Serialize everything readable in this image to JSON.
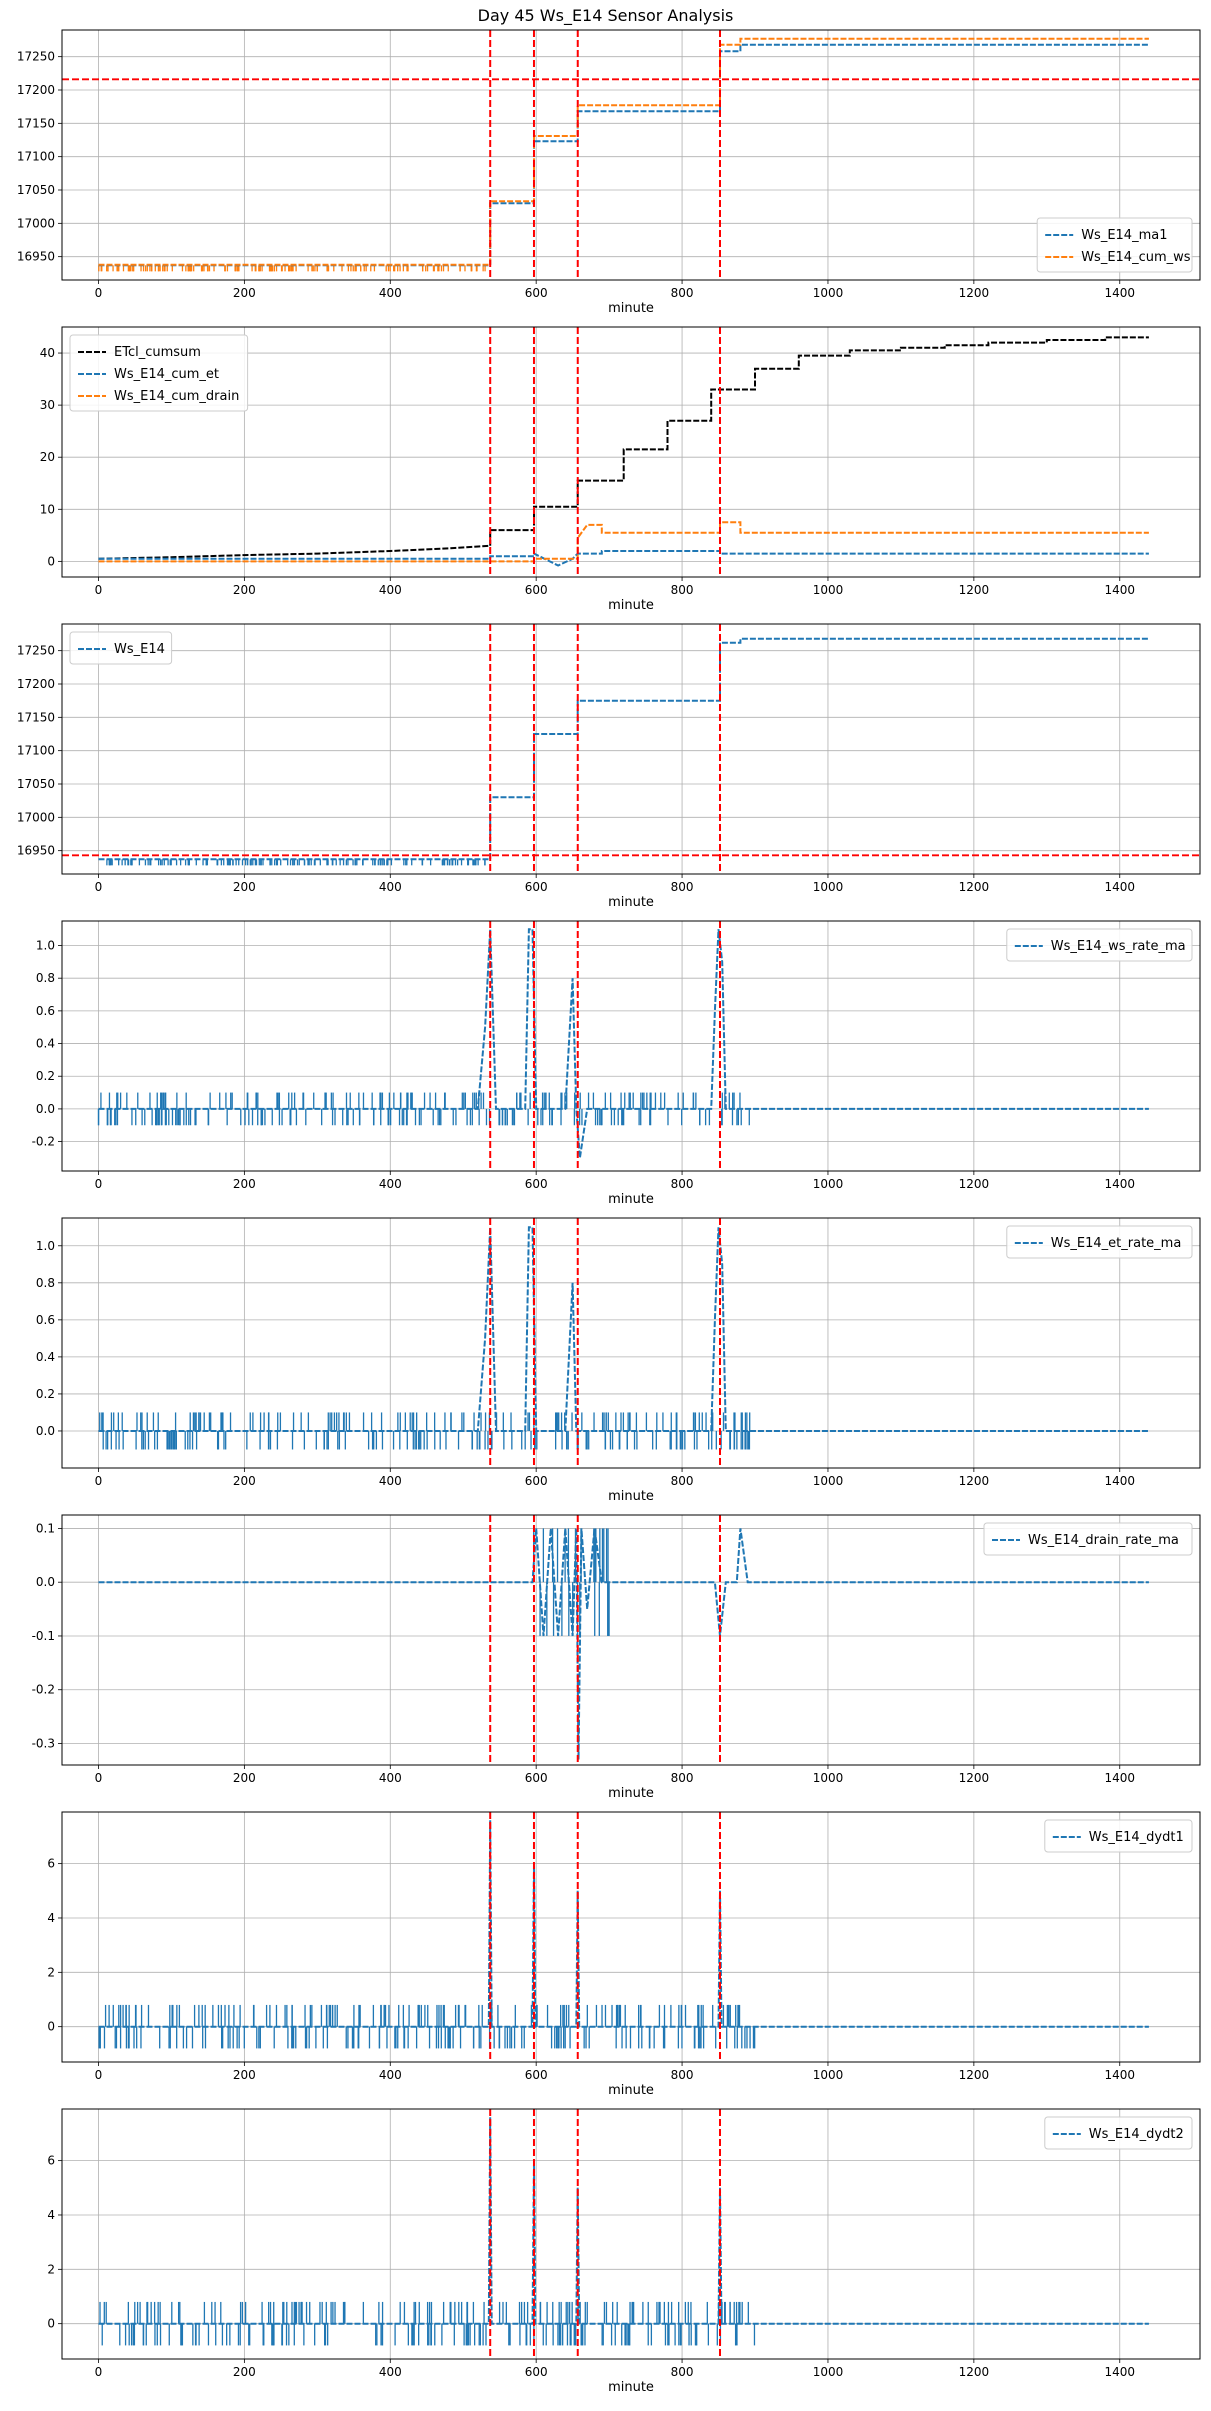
{
  "figure_title": "Day 45 Ws_E14 Sensor Analysis",
  "colors": {
    "blue": "#1f77b4",
    "orange": "#ff7f0e",
    "black": "#000000",
    "red": "#ff0000",
    "grid": "#b0b0b0"
  },
  "chart_data": [
    {
      "type": "line",
      "title": "",
      "xlabel": "minute",
      "ylabel": "",
      "xlim": [
        -50,
        1510
      ],
      "ylim": [
        16915,
        17290
      ],
      "xticks": [
        0,
        200,
        400,
        600,
        800,
        1000,
        1200,
        1400
      ],
      "yticks": [
        16950,
        17000,
        17050,
        17100,
        17150,
        17200,
        17250
      ],
      "legend": "bottom-right",
      "vlines": [
        537,
        597,
        657,
        852
      ],
      "hlines": [
        17216
      ],
      "series": [
        {
          "name": "Ws_E14_ma1",
          "color": "#1f77b4",
          "dashed": true,
          "x": [
            0,
            537,
            537,
            597,
            597,
            657,
            657,
            852,
            852,
            880,
            880,
            1440
          ],
          "y": [
            16937,
            16937,
            17030,
            17030,
            17123,
            17123,
            17168,
            17168,
            17258,
            17258,
            17268,
            17268
          ]
        },
        {
          "name": "Ws_E14_cum_ws",
          "color": "#ff7f0e",
          "dashed": true,
          "x": [
            0,
            537,
            537,
            597,
            597,
            657,
            657,
            852,
            852,
            880,
            880,
            1440
          ],
          "y": [
            16938,
            16938,
            17033,
            17033,
            17131,
            17131,
            17177,
            17177,
            17268,
            17268,
            17277,
            17277
          ]
        }
      ]
    },
    {
      "type": "line",
      "title": "",
      "xlabel": "minute",
      "ylabel": "",
      "xlim": [
        -50,
        1510
      ],
      "ylim": [
        -3,
        45
      ],
      "xticks": [
        0,
        200,
        400,
        600,
        800,
        1000,
        1200,
        1400
      ],
      "yticks": [
        0,
        10,
        20,
        30,
        40
      ],
      "legend": "top-left",
      "vlines": [
        537,
        597,
        657,
        852
      ],
      "hlines": [],
      "series": [
        {
          "name": "ETcl_cumsum",
          "color": "#000000",
          "dashed": true,
          "x": [
            0,
            100,
            200,
            300,
            400,
            480,
            537,
            537,
            597,
            597,
            657,
            657,
            720,
            720,
            780,
            780,
            840,
            840,
            900,
            900,
            960,
            960,
            1030,
            1030,
            1100,
            1100,
            1160,
            1160,
            1220,
            1220,
            1300,
            1300,
            1380,
            1380,
            1440
          ],
          "y": [
            0.5,
            0.8,
            1.2,
            1.5,
            2.0,
            2.5,
            3.0,
            6.0,
            6.0,
            10.5,
            10.5,
            15.5,
            15.5,
            21.5,
            21.5,
            27.0,
            27.0,
            33.0,
            33.0,
            37.0,
            37.0,
            39.5,
            39.5,
            40.5,
            40.5,
            41.0,
            41.0,
            41.5,
            41.5,
            42.0,
            42.0,
            42.5,
            42.5,
            43.0,
            43.0
          ]
        },
        {
          "name": "Ws_E14_cum_et",
          "color": "#1f77b4",
          "dashed": true,
          "x": [
            0,
            537,
            537,
            597,
            597,
            630,
            650,
            657,
            690,
            690,
            852,
            852,
            1440
          ],
          "y": [
            0.5,
            0.5,
            1.0,
            1.0,
            1.5,
            -0.8,
            0.5,
            1.5,
            1.5,
            2.0,
            2.0,
            1.5,
            1.5
          ]
        },
        {
          "name": "Ws_E14_cum_drain",
          "color": "#ff7f0e",
          "dashed": true,
          "x": [
            0,
            597,
            597,
            657,
            657,
            670,
            690,
            690,
            852,
            852,
            880,
            880,
            1440
          ],
          "y": [
            0,
            0,
            0.5,
            0.5,
            4.5,
            7.0,
            7.0,
            5.5,
            5.5,
            7.5,
            7.5,
            5.5,
            5.5
          ]
        }
      ]
    },
    {
      "type": "line",
      "title": "",
      "xlabel": "minute",
      "ylabel": "",
      "xlim": [
        -50,
        1510
      ],
      "ylim": [
        16915,
        17290
      ],
      "xticks": [
        0,
        200,
        400,
        600,
        800,
        1000,
        1200,
        1400
      ],
      "yticks": [
        16950,
        17000,
        17050,
        17100,
        17150,
        17200,
        17250
      ],
      "legend": "top-left",
      "vlines": [
        537,
        597,
        657,
        852
      ],
      "hlines": [
        16943
      ],
      "series": [
        {
          "name": "Ws_E14",
          "color": "#1f77b4",
          "dashed": true,
          "x": [
            0,
            537,
            537,
            597,
            597,
            657,
            657,
            852,
            852,
            880,
            880,
            1440
          ],
          "y": [
            16937,
            16937,
            17030,
            17030,
            17125,
            17125,
            17175,
            17175,
            17262,
            17262,
            17268,
            17268
          ]
        }
      ]
    },
    {
      "type": "line",
      "title": "",
      "xlabel": "minute",
      "ylabel": "",
      "xlim": [
        -50,
        1510
      ],
      "ylim": [
        -0.38,
        1.15
      ],
      "xticks": [
        0,
        200,
        400,
        600,
        800,
        1000,
        1200,
        1400
      ],
      "yticks": [
        -0.2,
        0.0,
        0.2,
        0.4,
        0.6,
        0.8,
        1.0
      ],
      "legend": "top-right",
      "vlines": [
        537,
        597,
        657,
        852
      ],
      "hlines": [],
      "series": [
        {
          "name": "Ws_E14_ws_rate_ma",
          "color": "#1f77b4",
          "dashed": true,
          "x": [
            0,
            520,
            530,
            537,
            545,
            560,
            585,
            590,
            595,
            600,
            640,
            650,
            655,
            660,
            670,
            840,
            845,
            850,
            855,
            860,
            880,
            1440
          ],
          "y": [
            0,
            0,
            0.5,
            1.1,
            0,
            0,
            0,
            1.1,
            1.1,
            0,
            0,
            0.8,
            0,
            -0.3,
            0,
            0,
            0.6,
            1.1,
            0.9,
            0,
            0,
            0
          ]
        }
      ]
    },
    {
      "type": "line",
      "title": "",
      "xlabel": "minute",
      "ylabel": "",
      "xlim": [
        -50,
        1510
      ],
      "ylim": [
        -0.2,
        1.15
      ],
      "xticks": [
        0,
        200,
        400,
        600,
        800,
        1000,
        1200,
        1400
      ],
      "yticks": [
        0.0,
        0.2,
        0.4,
        0.6,
        0.8,
        1.0
      ],
      "legend": "top-right",
      "vlines": [
        537,
        597,
        657,
        852
      ],
      "hlines": [],
      "series": [
        {
          "name": "Ws_E14_et_rate_ma",
          "color": "#1f77b4",
          "dashed": true,
          "x": [
            0,
            520,
            530,
            537,
            545,
            585,
            590,
            595,
            600,
            640,
            650,
            655,
            660,
            840,
            845,
            850,
            855,
            860,
            1440
          ],
          "y": [
            0,
            0,
            0.5,
            1.1,
            0,
            0,
            1.1,
            1.1,
            0,
            0,
            0.8,
            0,
            0,
            0,
            0.6,
            1.1,
            0.9,
            0,
            0
          ]
        }
      ]
    },
    {
      "type": "line",
      "title": "",
      "xlabel": "minute",
      "ylabel": "",
      "xlim": [
        -50,
        1510
      ],
      "ylim": [
        -0.34,
        0.125
      ],
      "xticks": [
        0,
        200,
        400,
        600,
        800,
        1000,
        1200,
        1400
      ],
      "yticks": [
        -0.3,
        -0.2,
        -0.1,
        0.0,
        0.1
      ],
      "legend": "top-right",
      "vlines": [
        537,
        597,
        657,
        852
      ],
      "hlines": [],
      "series": [
        {
          "name": "Ws_E14_drain_rate_ma",
          "color": "#1f77b4",
          "dashed": true,
          "x": [
            0,
            595,
            600,
            610,
            620,
            630,
            640,
            650,
            655,
            658,
            662,
            670,
            680,
            690,
            700,
            845,
            852,
            860,
            875,
            880,
            890,
            1440
          ],
          "y": [
            0,
            0,
            0.1,
            -0.1,
            0.1,
            -0.1,
            0.1,
            -0.1,
            0.1,
            -0.33,
            0.1,
            -0.05,
            0.1,
            0,
            0,
            0,
            -0.1,
            0,
            0,
            0.1,
            0,
            0
          ]
        }
      ]
    },
    {
      "type": "line",
      "title": "",
      "xlabel": "minute",
      "ylabel": "",
      "xlim": [
        -50,
        1510
      ],
      "ylim": [
        -1.3,
        7.9
      ],
      "xticks": [
        0,
        200,
        400,
        600,
        800,
        1000,
        1200,
        1400
      ],
      "yticks": [
        0,
        2,
        4,
        6
      ],
      "legend": "top-right",
      "vlines": [
        537,
        597,
        657,
        852
      ],
      "hlines": [],
      "series": [
        {
          "name": "Ws_E14_dydt1",
          "color": "#1f77b4",
          "dashed": true,
          "x": [
            0,
            535,
            537,
            539,
            595,
            597,
            599,
            655,
            657,
            659,
            850,
            852,
            854,
            1440
          ],
          "y": [
            0,
            0,
            7.6,
            0,
            0,
            5.9,
            0,
            0,
            5.0,
            0,
            0,
            5.0,
            0,
            0
          ]
        }
      ]
    },
    {
      "type": "line",
      "title": "",
      "xlabel": "minute",
      "ylabel": "",
      "xlim": [
        -50,
        1510
      ],
      "ylim": [
        -1.3,
        7.9
      ],
      "xticks": [
        0,
        200,
        400,
        600,
        800,
        1000,
        1200,
        1400
      ],
      "yticks": [
        0,
        2,
        4,
        6
      ],
      "legend": "top-right",
      "vlines": [
        537,
        597,
        657,
        852
      ],
      "hlines": [],
      "series": [
        {
          "name": "Ws_E14_dydt2",
          "color": "#1f77b4",
          "dashed": true,
          "x": [
            0,
            535,
            537,
            539,
            595,
            597,
            599,
            655,
            657,
            659,
            850,
            852,
            854,
            1440
          ],
          "y": [
            0,
            0,
            7.6,
            0,
            0,
            5.9,
            0,
            0,
            5.0,
            0,
            0,
            5.0,
            0,
            0
          ]
        }
      ]
    }
  ]
}
